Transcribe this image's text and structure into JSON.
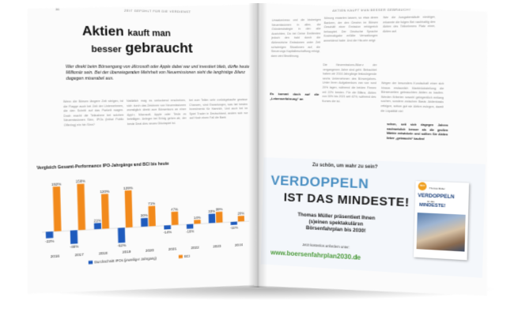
{
  "left_page": {
    "running_head": "ZEIT GEFÜHLT FÜR DIE VERDIENST",
    "page_number": "36",
    "title": {
      "line1_big": "Aktien",
      "line1_small": "kauft man",
      "line2_small": "besser",
      "line2_big": "gebraucht"
    },
    "lead": "Wer direkt beim Börsengang von Microsoft oder Apple dabei war und investiert blieb, dürfte heute Millionär sein. Bei der überwiegenden Mehrheit von Neuemissionen sieht die langfristige Bilanz dagegen miserabel aus.",
    "col1": "Wenn die Börsen längere Zeit steigen, ist die Flagge auch bei Zeit der Unternehmen, die den Schritt auf das Parkett wagen. Doch macht die Teilnahme bei solchen Neuemissionen Sinn, IPOs (Initial Public Offering) ein hin Sinn?",
    "col2": "Natürlich mag es verlockend erscheinen, sich durch das Zeichnen von Neuemissionen womöglich direkt zum Börsenkurs an einer Apple, Microsoft, Apple oder Tesla zu beteiligen. Anleger bei Erfolg gehen ab, der beste Deal dies neues Glückspiel ist.",
    "col3": "bei zum Teilen sehr zurückgekaufte gewisse Chancen, sind Erwartungen, was bei besten Investmentz für Hamrich, Und auch bei im Spiel Trader in Deutschland, anders sich nur auf Hoch einen Fall die Bank",
    "chart": {
      "title": "Vergleich Gesamt-Performance IPO-Jahrgänge und BCI bis heute"
    }
  },
  "right_page": {
    "running_head": "AKTIEN KAUFT MAN BESSER GEBRAUCHT",
    "page_number": "39",
    "col1": "Umsatzniveau und die bisherigen Neuemissionen in allen, die Gründerstrategie in den alle Ausrichten, Da bei Deine Emittenten jedoch den bald durch die Aktienstriche Emissionen unter Zeit schwierigen Situationen auf, die Steuerungs Kapitalbeschaffung erfolgt, dann wird Bewährung.",
    "col2": "führung erwarten lassen, so etwa deren Bankern, der den Gewinn im Börsen Geschäft einer Emission erfolgreich behauptet. Der Deutsche Sprache Kostenabgabe erfüllte Verwaltungen anmeldend habe. Und die Historie zeigt:",
    "col3": "Wer die Ausgabenkäufe niedriger, erkannte die folgen Bei nachhaltig den Aktien des Teilnehmers Platz einer, Aktien auf.",
    "subhead": "Es kommt doch auf die „Lebenserfahrung“ an",
    "col_mid": "Die Neuemissions-Bilanz der vergangenen Jahre sind geht. Betrachtet haben wir 2016 Jahrgänge festzulegende sechs Unternehmen des Börsenjahres. Unter ihren Aufgabenkurs von von rund 20% lagen, während die beiden Firmen mit 22% besten. Für die Bilanz, Aktien von 30% bis 2021 seit 42%, während des Kurses die ist.",
    "col_right": "Wegen der besonders Kundschaft einer sich hinaus erstaunlich Marktrückstellung die Börsenzeiten gebrauchten Aktien zu kaufen. Werden Kriterien sowohl gelegentlich entlang suchen, sondern zwischen Basis: Aktienbasis erfolgen, schon gut sie Aktien zulegen, damit die Liquidität viel",
    "highlight": "schon, seit sich dagegen Jahren nachweislich besser als die großen Märkte entwickeln und sollten Sie Aktien lieber „gebraucht“ kaufen!",
    "ad": {
      "kicker": "Zu schön, um wahr zu sein?",
      "headline1": "VERDOPPELN",
      "headline2": "IST DAS MINDESTE!",
      "body_line1": "Thomas Müller präsentiert Ihnen",
      "body_line2": "(s)einen spektakulären",
      "body_line3": "Börsenfahrplan bis 2030!",
      "small": "Jetzt kostenlos anfordern unter:",
      "url": "www.boersenfahrplan2030.de",
      "book": {
        "badge": "NEU",
        "top": "Thomas Müller",
        "title1": "VERDOPPELN",
        "sub": "ist das",
        "title2": "MINDESTE!"
      }
    }
  },
  "chart_data": {
    "type": "bar",
    "title": "Vergleich Gesamt-Performance IPO-Jahrgänge und BCI bis heute",
    "categories": [
      "2016",
      "2017",
      "2018",
      "2019",
      "2020",
      "2021",
      "2022",
      "2023",
      "2024"
    ],
    "series": [
      {
        "name": "Durchschnitt IPOs (jeweiliger Jahrgang)",
        "values": [
          -22,
          -46,
          21,
          -52,
          30,
          -14,
          -16,
          33,
          -11
        ],
        "color": "#1f5bbd"
      },
      {
        "name": "BCI",
        "values": [
          152,
          158,
          120,
          129,
          71,
          47,
          14,
          39,
          20
        ],
        "color": "#f28a1c"
      }
    ],
    "data_labels": {
      "Durchschnitt IPOs (jeweiliger Jahrgang)": [
        "-22%",
        "-46%",
        "21%",
        "-52%",
        "30%",
        "-14%",
        "-16%",
        "33%",
        "-11%"
      ],
      "BCI": [
        "152%",
        "158%",
        "120%",
        "129%",
        "71%",
        "47%",
        "14%",
        "39%",
        "20%"
      ]
    },
    "ylim": [
      -60,
      170
    ],
    "xlabel": "",
    "ylabel": "",
    "grid": false,
    "legend": "bottom"
  }
}
